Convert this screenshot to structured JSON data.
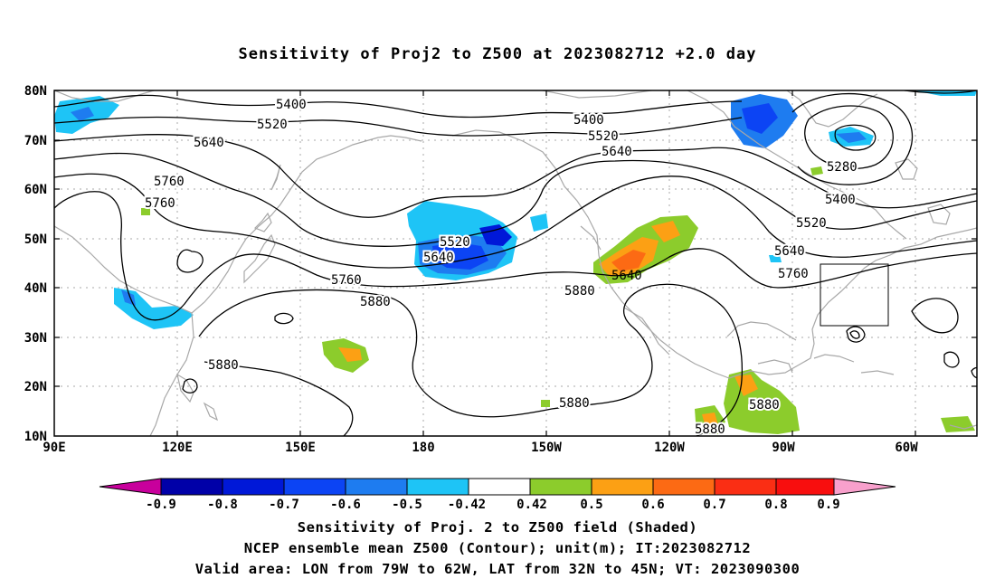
{
  "title": "Sensitivity of Proj2 to Z500 at 2023082712 +2.0 day",
  "lat_labels": [
    "80N",
    "70N",
    "60N",
    "50N",
    "40N",
    "30N",
    "20N",
    "10N"
  ],
  "lon_labels": [
    "90E",
    "120E",
    "150E",
    "180",
    "150W",
    "120W",
    "90W",
    "60W"
  ],
  "contour_labels": [
    "5400",
    "5520",
    "5640",
    "5760",
    "5760",
    "5400",
    "5520",
    "5640",
    "5520",
    "5640",
    "5760",
    "5880",
    "5280",
    "5400",
    "5520",
    "5640",
    "5760",
    "5880",
    "5880",
    "5880",
    "5880",
    "5880"
  ],
  "colorbar": {
    "labels": [
      "-0.9",
      "-0.8",
      "-0.7",
      "-0.6",
      "-0.5",
      "-0.42",
      "0.42",
      "0.5",
      "0.6",
      "0.7",
      "0.8",
      "0.9"
    ],
    "colors": [
      "#c8009c",
      "#0000a8",
      "#0018d8",
      "#0c44f4",
      "#1e7cf0",
      "#1ec4f6",
      "#ffffff",
      "#8ccc2c",
      "#fca014",
      "#fc6a14",
      "#fa2e14",
      "#f80e0e",
      "#f8a0cc"
    ]
  },
  "captions": [
    "Sensitivity of Proj. 2 to Z500 field (Shaded)",
    "NCEP ensemble mean Z500 (Contour); unit(m); IT:2023082712",
    "Valid area: LON from 79W to 62W, LAT from 32N to 45N; VT: 2023090300"
  ]
}
